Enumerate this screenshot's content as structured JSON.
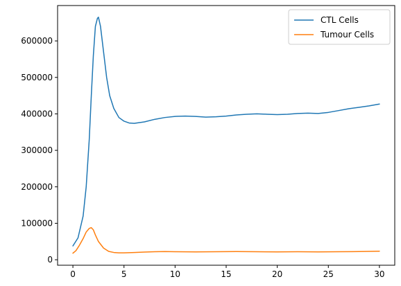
{
  "chart_data": {
    "type": "line",
    "title": "",
    "xlabel": "",
    "ylabel": "",
    "xlim": [
      -1.5,
      31.5
    ],
    "ylim": [
      -15000,
      697000
    ],
    "xticks": [
      0,
      5,
      10,
      15,
      20,
      25,
      30
    ],
    "yticks": [
      0,
      100000,
      200000,
      300000,
      400000,
      500000,
      600000
    ],
    "grid": false,
    "legend": "top-right",
    "series": [
      {
        "name": "CTL Cells",
        "color": "#1f77b4",
        "x": [
          0,
          0.5,
          1,
          1.3,
          1.6,
          1.8,
          2,
          2.2,
          2.4,
          2.5,
          2.7,
          3,
          3.3,
          3.6,
          4,
          4.5,
          5,
          5.5,
          6,
          7,
          8,
          9,
          10,
          11,
          12,
          13,
          14,
          15,
          16,
          17,
          18,
          19,
          20,
          21,
          22,
          23,
          24,
          25,
          26,
          27,
          28,
          29,
          30
        ],
        "y": [
          38000,
          60000,
          120000,
          200000,
          330000,
          450000,
          560000,
          640000,
          662000,
          665000,
          640000,
          570000,
          500000,
          450000,
          415000,
          390000,
          380000,
          375000,
          374000,
          378000,
          385000,
          390000,
          393000,
          394000,
          393000,
          391000,
          392000,
          394000,
          397000,
          399000,
          400000,
          399000,
          398000,
          399000,
          401000,
          402000,
          401000,
          404000,
          409000,
          414000,
          418000,
          422000,
          427000
        ]
      },
      {
        "name": "Tumour Cells",
        "color": "#ff7f0e",
        "x": [
          0,
          0.3,
          0.6,
          1,
          1.3,
          1.6,
          1.8,
          2,
          2.2,
          2.5,
          3,
          3.5,
          4,
          4.5,
          5,
          6,
          7,
          8,
          9,
          10,
          12,
          14,
          16,
          18,
          20,
          22,
          24,
          26,
          28,
          30
        ],
        "y": [
          18000,
          25000,
          38000,
          58000,
          76000,
          86000,
          88000,
          82000,
          68000,
          50000,
          32000,
          23000,
          20000,
          19000,
          19000,
          20000,
          21000,
          22000,
          22500,
          22000,
          21500,
          22000,
          22500,
          22000,
          21500,
          22000,
          21500,
          22000,
          22500,
          23500
        ]
      }
    ]
  }
}
